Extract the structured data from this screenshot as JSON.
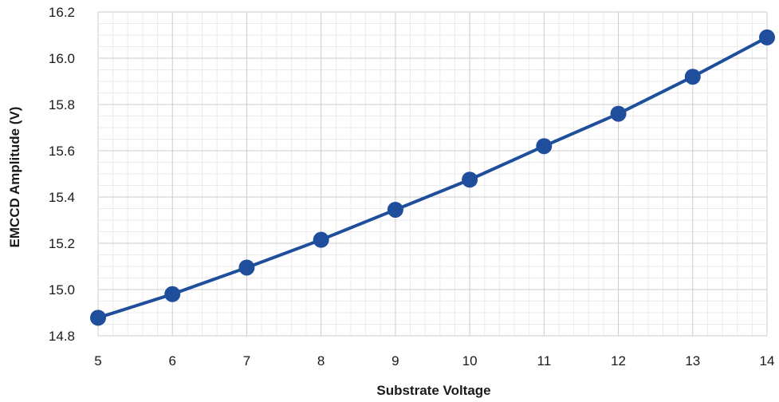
{
  "chart_data": {
    "type": "line",
    "title": "",
    "xlabel": "Substrate Voltage",
    "ylabel": "EMCCD Amplitude (V)",
    "xlim": [
      5,
      14
    ],
    "ylim": [
      14.8,
      16.2
    ],
    "x_ticks": [
      5,
      6,
      7,
      8,
      9,
      10,
      11,
      12,
      13,
      14
    ],
    "y_ticks": [
      14.8,
      15.0,
      15.2,
      15.4,
      15.6,
      15.8,
      16.0,
      16.2
    ],
    "y_tick_labels": [
      "14.8",
      "15.0",
      "15.2",
      "15.4",
      "15.6",
      "15.8",
      "16.0",
      "16.2"
    ],
    "x_minor_divisions": 5,
    "y_minor_divisions": 4,
    "grid": true,
    "legend": "none",
    "series": [
      {
        "x": [
          5,
          6,
          7,
          8,
          9,
          10,
          11,
          12,
          13,
          14
        ],
        "values": [
          14.878,
          14.98,
          15.095,
          15.215,
          15.345,
          15.475,
          15.62,
          15.76,
          15.92,
          16.09
        ],
        "color": "#1f4e9c"
      }
    ],
    "colors": {
      "line": "#1f4e9c",
      "marker": "#1f4e9c",
      "major_grid": "#cccccc",
      "minor_grid": "#ebebeb"
    }
  }
}
